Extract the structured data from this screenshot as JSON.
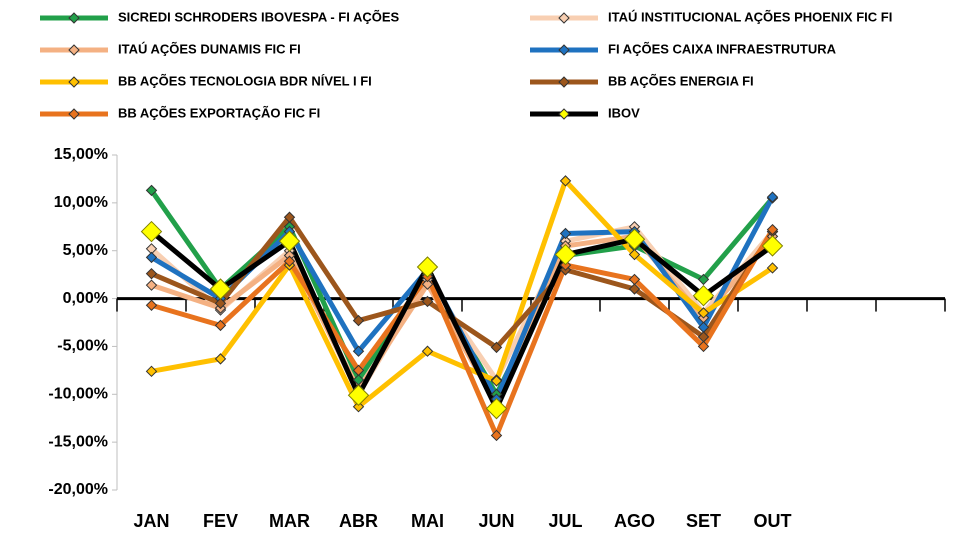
{
  "chart_data": {
    "type": "line",
    "categories": [
      "JAN",
      "FEV",
      "MAR",
      "ABR",
      "MAI",
      "JUN",
      "JUL",
      "AGO",
      "SET",
      "OUT",
      null,
      null
    ],
    "ylim": [
      -20,
      15
    ],
    "yticks": [
      {
        "value": -20,
        "label": "-20,00%"
      },
      {
        "value": -15,
        "label": "-15,00%"
      },
      {
        "value": -10,
        "label": "-10,00%"
      },
      {
        "value": -5,
        "label": "-5,00%"
      },
      {
        "value": 0,
        "label": "0,00%"
      },
      {
        "value": 5,
        "label": "5,00%"
      },
      {
        "value": 10,
        "label": "10,00%"
      },
      {
        "value": 15,
        "label": "15,00%"
      }
    ],
    "grid": false,
    "series": [
      {
        "name": "SICREDI SCHRODERS IBOVESPA - FI AÇÕES",
        "color": "#22a04a",
        "values": [
          11.3,
          1.0,
          7.5,
          -8.5,
          2.5,
          -10.0,
          4.5,
          5.5,
          2.0,
          10.5,
          null,
          null
        ]
      },
      {
        "name": "ITAÚ INSTITUCIONAL AÇÕES PHOENIX FIC FI",
        "color": "#f8cfb2",
        "values": [
          5.2,
          -1.2,
          5.0,
          -10.0,
          2.0,
          -8.5,
          6.0,
          7.5,
          -1.5,
          7.0,
          null,
          null
        ]
      },
      {
        "name": "ITAÚ AÇÕES DUNAMIS FIC FI",
        "color": "#f4b183",
        "values": [
          1.4,
          -1.0,
          4.5,
          -9.5,
          1.5,
          -11.0,
          5.5,
          6.5,
          -2.0,
          6.5,
          null,
          null
        ]
      },
      {
        "name": "FI AÇÕES CAIXA INFRAESTRUTURA",
        "color": "#1f72c0",
        "values": [
          4.3,
          0.0,
          7.0,
          -5.5,
          3.0,
          -10.5,
          6.8,
          7.0,
          -3.0,
          10.6,
          null,
          null
        ]
      },
      {
        "name": "BB AÇÕES TECNOLOGIA BDR NÍVEL I FI",
        "color": "#ffc000",
        "values": [
          -7.6,
          -6.3,
          3.5,
          -11.3,
          -5.5,
          -8.6,
          12.3,
          4.6,
          -1.5,
          3.2,
          null,
          null
        ]
      },
      {
        "name": "BB AÇÕES ENERGIA FI",
        "color": "#9c561c",
        "values": [
          2.6,
          -0.5,
          8.5,
          -2.3,
          -0.3,
          -5.1,
          3.0,
          1.0,
          -4.0,
          7.0,
          null,
          null
        ]
      },
      {
        "name": "BB AÇÕES EXPORTAÇÃO FIC FI",
        "color": "#e8731e",
        "values": [
          -0.7,
          -2.8,
          3.9,
          -7.5,
          2.3,
          -14.3,
          3.5,
          2.0,
          -5.0,
          7.2,
          null,
          null
        ]
      },
      {
        "name": "IBOV",
        "color": "#000000",
        "marker_color": "#ffff00",
        "values": [
          7.0,
          1.0,
          6.0,
          -10.1,
          3.3,
          -11.5,
          4.6,
          6.2,
          0.3,
          5.5,
          null,
          null
        ]
      }
    ]
  }
}
